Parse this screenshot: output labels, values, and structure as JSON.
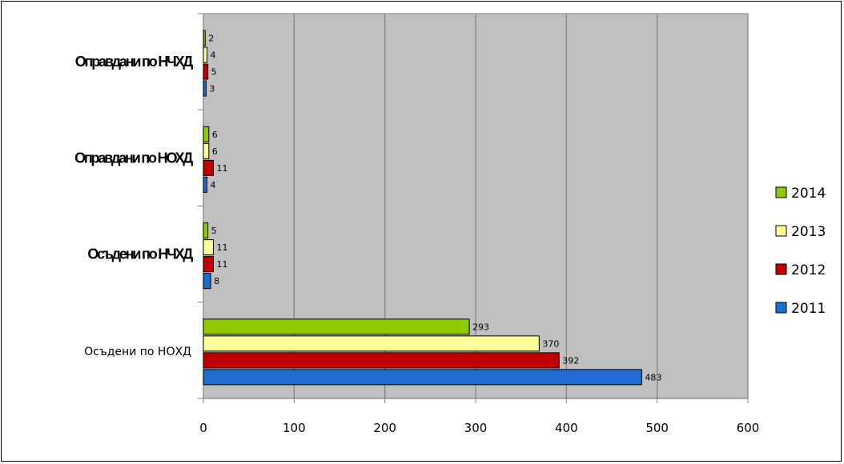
{
  "chart_data": {
    "type": "bar",
    "orientation": "horizontal",
    "categories": [
      "Осъдени по НОХД",
      "Осъдени по НЧХД",
      "Оправдани по НОХД",
      "Оправдани по НЧХД"
    ],
    "category_styles": [
      "normal",
      "bold",
      "bold",
      "bold"
    ],
    "series": [
      {
        "name": "2011",
        "color": "#1f6bd0",
        "values": [
          483,
          8,
          4,
          3
        ]
      },
      {
        "name": "2012",
        "color": "#c00000",
        "values": [
          392,
          11,
          11,
          5
        ]
      },
      {
        "name": "2013",
        "color": "#ffff99",
        "values": [
          370,
          11,
          6,
          4
        ]
      },
      {
        "name": "2014",
        "color": "#8fca00",
        "values": [
          293,
          5,
          6,
          2
        ]
      }
    ],
    "xlim": [
      0,
      600
    ],
    "xticks": [
      "0",
      "100",
      "200",
      "300",
      "400",
      "500",
      "600"
    ],
    "grid": true,
    "plot_background": "#c0c0c0",
    "legend_position": "right",
    "legend_order": [
      "2014",
      "2013",
      "2012",
      "2011"
    ]
  }
}
